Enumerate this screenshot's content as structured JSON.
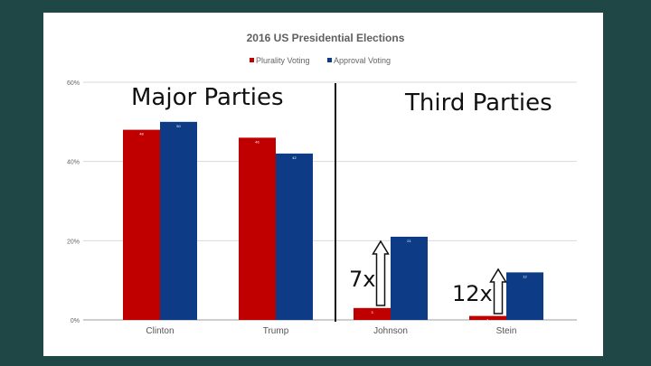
{
  "chart_data": {
    "type": "bar",
    "title": "2016 US Presidential Elections",
    "categories": [
      "Clinton",
      "Trump",
      "Johnson",
      "Stein"
    ],
    "series": [
      {
        "name": "Plurality Voting",
        "color": "#c00000",
        "values": [
          48,
          46,
          3,
          1
        ]
      },
      {
        "name": "Approval Voting",
        "color": "#0d3b85",
        "values": [
          50,
          42,
          21,
          12
        ]
      }
    ],
    "ylim": [
      0,
      60
    ],
    "y_ticks": [
      "0%",
      "20%",
      "40%",
      "60%"
    ],
    "y_tick_values": [
      0,
      20,
      40,
      60
    ],
    "grid": true,
    "legend": "top-center",
    "xlabel": "",
    "ylabel": ""
  },
  "annotations": {
    "major_label": "Major Parties",
    "third_label": "Third Parties",
    "johnson_multiplier": "7x",
    "stein_multiplier": "12x"
  }
}
